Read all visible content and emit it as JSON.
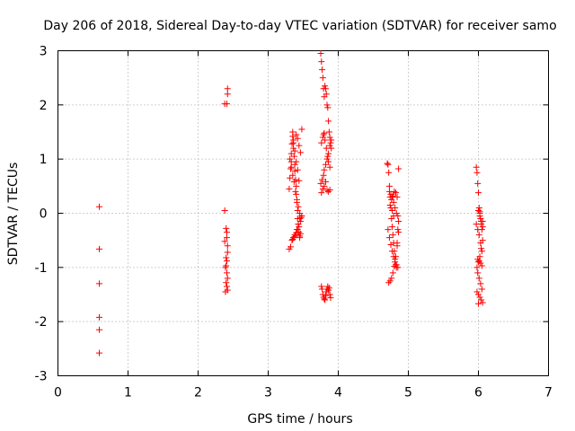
{
  "chart_data": {
    "type": "scatter",
    "title": "Day 206 of 2018, Sidereal Day-to-day VTEC variation (SDTVAR) for receiver samo",
    "xlabel": "GPS time / hours",
    "ylabel": "SDTVAR / TECUs",
    "xlim": [
      0,
      7
    ],
    "ylim": [
      -3,
      3
    ],
    "xticks": [
      "0",
      "1",
      "2",
      "3",
      "4",
      "5",
      "6",
      "7"
    ],
    "yticks": [
      "-3",
      "-2",
      "-1",
      "0",
      "1",
      "2",
      "3"
    ],
    "grid": true,
    "marker": "+",
    "color": "#ff0000",
    "series": [
      {
        "name": "SDTVAR",
        "x": [
          0.59,
          0.59,
          0.59,
          0.59,
          0.59,
          0.59,
          2.38,
          2.41,
          2.42,
          2.42,
          2.38,
          2.4,
          2.41,
          2.42,
          2.42,
          2.41,
          2.4,
          2.39,
          2.41,
          2.42,
          2.4,
          2.41,
          2.42,
          2.39,
          2.4,
          2.41,
          2.38,
          3.3,
          3.31,
          3.32,
          3.33,
          3.33,
          3.34,
          3.35,
          3.35,
          3.36,
          3.36,
          3.37,
          3.38,
          3.38,
          3.39,
          3.4,
          3.4,
          3.41,
          3.42,
          3.42,
          3.43,
          3.44,
          3.45,
          3.45,
          3.46,
          3.3,
          3.32,
          3.34,
          3.36,
          3.38,
          3.4,
          3.42,
          3.44,
          3.46,
          3.48,
          3.31,
          3.33,
          3.35,
          3.37,
          3.39,
          3.41,
          3.43,
          3.45,
          3.47,
          3.36,
          3.38,
          3.4,
          3.42,
          3.44,
          3.4,
          3.42,
          3.44,
          3.46,
          3.48,
          3.35,
          3.37,
          3.39,
          3.41,
          3.43,
          3.45,
          3.75,
          3.76,
          3.77,
          3.78,
          3.79,
          3.8,
          3.81,
          3.82,
          3.83,
          3.84,
          3.85,
          3.86,
          3.87,
          3.88,
          3.89,
          3.9,
          3.76,
          3.77,
          3.78,
          3.79,
          3.8,
          3.81,
          3.82,
          3.83,
          3.84,
          3.85,
          3.86,
          3.87,
          3.88,
          3.89,
          3.75,
          3.77,
          3.79,
          3.8,
          3.82,
          3.84,
          3.86,
          3.88,
          3.9,
          3.76,
          3.78,
          3.8,
          3.82,
          3.84,
          3.86,
          3.88,
          3.76,
          3.78,
          3.79,
          3.8,
          3.81,
          3.83,
          3.85,
          3.86,
          3.88,
          4.7,
          4.71,
          4.72,
          4.73,
          4.74,
          4.75,
          4.76,
          4.77,
          4.78,
          4.79,
          4.8,
          4.81,
          4.82,
          4.83,
          4.84,
          4.85,
          4.86,
          4.72,
          4.74,
          4.76,
          4.78,
          4.8,
          4.82,
          4.84,
          4.86,
          4.73,
          4.75,
          4.77,
          4.79,
          4.81,
          4.83,
          4.85,
          4.71,
          4.73,
          4.75,
          4.77,
          4.79,
          4.81,
          4.83,
          4.85,
          4.74,
          4.76,
          4.78,
          4.8,
          4.82,
          4.84,
          4.86,
          4.77,
          4.79,
          5.97,
          5.98,
          5.99,
          6.0,
          6.01,
          6.02,
          6.03,
          6.04,
          6.05,
          6.06,
          5.98,
          6.0,
          6.02,
          6.04,
          6.06,
          5.99,
          6.01,
          6.03,
          6.05,
          5.98,
          6.0,
          6.02,
          6.04,
          6.06,
          5.99,
          6.01,
          6.03,
          6.05,
          6.0,
          6.02,
          6.04,
          6.06,
          5.97,
          5.99,
          6.01,
          6.03,
          6.05,
          6.0,
          6.02
        ],
        "y": [
          0.12,
          -0.66,
          -1.3,
          -1.92,
          -2.15,
          -2.58,
          2.02,
          2.02,
          2.2,
          2.3,
          0.05,
          -0.28,
          -0.45,
          -0.6,
          -0.72,
          -0.88,
          -0.97,
          -1.0,
          -1.1,
          -1.2,
          -1.28,
          -1.35,
          -1.42,
          -1.45,
          -0.82,
          -0.35,
          -0.52,
          0.45,
          0.65,
          0.82,
          0.95,
          1.1,
          1.28,
          1.42,
          1.5,
          1.35,
          1.2,
          1.05,
          0.9,
          0.78,
          0.62,
          0.5,
          0.35,
          0.2,
          0.05,
          -0.1,
          -0.2,
          -0.35,
          -0.45,
          -0.42,
          -0.38,
          -0.66,
          -0.62,
          -0.5,
          -0.45,
          -0.4,
          -0.36,
          -0.3,
          -0.25,
          -0.15,
          -0.05,
          1.0,
          0.85,
          0.7,
          0.58,
          0.4,
          0.25,
          0.12,
          0.0,
          -0.08,
          1.3,
          1.15,
          0.95,
          0.8,
          0.6,
          1.45,
          1.38,
          1.25,
          1.12,
          1.55,
          -0.48,
          -0.44,
          -0.4,
          -0.3,
          -0.2,
          -0.1,
          2.95,
          2.8,
          2.65,
          2.5,
          2.3,
          2.15,
          2.35,
          2.3,
          2.2,
          2.0,
          1.95,
          1.7,
          1.5,
          1.4,
          1.3,
          1.2,
          -1.35,
          -1.4,
          -1.5,
          -1.55,
          -1.58,
          -1.6,
          -1.52,
          -1.45,
          -1.4,
          -1.35,
          -1.42,
          -1.38,
          -1.5,
          -1.56,
          0.55,
          0.62,
          0.7,
          0.8,
          0.9,
          1.0,
          1.1,
          1.25,
          1.35,
          0.38,
          0.45,
          0.5,
          0.58,
          0.42,
          0.4,
          0.43,
          1.3,
          1.4,
          1.45,
          1.48,
          1.35,
          1.2,
          1.05,
          0.95,
          0.85,
          0.92,
          0.9,
          0.75,
          0.5,
          0.3,
          0.1,
          -0.1,
          -0.25,
          -0.4,
          -0.55,
          -0.7,
          -0.85,
          -0.95,
          -1.0,
          -0.6,
          -0.3,
          -0.15,
          -1.28,
          -1.25,
          -1.2,
          -1.1,
          -0.98,
          -0.8,
          -0.55,
          -0.35,
          0.4,
          0.35,
          0.3,
          0.2,
          0.1,
          0.0,
          -0.05,
          -0.3,
          -0.45,
          -0.58,
          -0.7,
          -0.8,
          -0.9,
          -0.95,
          -1.0,
          0.15,
          0.25,
          0.32,
          0.4,
          0.38,
          0.3,
          0.82,
          0.05,
          -0.05,
          0.85,
          0.75,
          0.55,
          0.38,
          0.1,
          0.0,
          -0.1,
          -0.2,
          -0.3,
          -0.15,
          -1.0,
          -0.9,
          -0.8,
          -0.65,
          -0.5,
          -1.1,
          -1.2,
          -1.3,
          -1.4,
          -1.45,
          -1.5,
          -1.55,
          -1.6,
          -1.65,
          -0.85,
          -0.88,
          -0.92,
          -0.97,
          0.05,
          -0.05,
          -0.15,
          -0.25,
          -0.2,
          -0.3,
          -0.4,
          -0.55,
          -0.7,
          -1.67,
          0.03
        ]
      }
    ]
  }
}
